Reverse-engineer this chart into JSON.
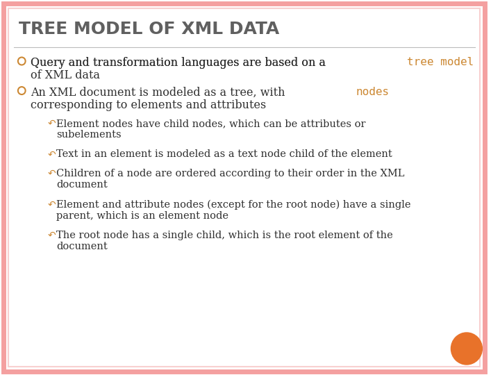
{
  "title": "TREE MODEL OF XML DATA",
  "background_color": "#FFFFFF",
  "border_outer_color": "#F4A0A0",
  "border_inner_color": "#F8D0D0",
  "title_color": "#606060",
  "text_color": "#2F2F2F",
  "highlight_color": "#CC8833",
  "bullet_color": "#CC8833",
  "orange_circle_color": "#E8722A",
  "title_fontsize": 18,
  "bullet_fontsize": 11.5,
  "sub_bullet_fontsize": 10.5,
  "bullet1_normal": "Query and transformation languages are based on a ",
  "bullet1_highlight": "tree model",
  "bullet1_line2": "of XML data",
  "bullet2_normal": "An XML document is modeled as a tree, with ",
  "bullet2_highlight": "nodes",
  "bullet2_line2": "corresponding to elements and attributes",
  "sub_bullets": [
    [
      "Element nodes have child nodes, which can be attributes or",
      "subelements"
    ],
    [
      "Text in an element is modeled as a text node child of the element"
    ],
    [
      "Children of a node are ordered according to their order in the XML",
      "document"
    ],
    [
      "Element and attribute nodes (except for the root node) have a single",
      "parent, which is an element node"
    ],
    [
      "The root node has a single child, which is the root element of the",
      "document"
    ]
  ]
}
